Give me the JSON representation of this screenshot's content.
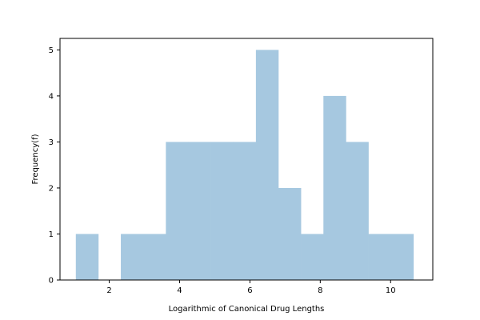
{
  "chart_data": {
    "type": "bar",
    "title": "",
    "xlabel": "Logarithmic of Canonical Drug Lengths",
    "ylabel": "Frequency(f)",
    "xlim": [
      0.6,
      11.2
    ],
    "ylim": [
      0,
      5.25
    ],
    "x_ticks": [
      2,
      4,
      6,
      8,
      10
    ],
    "y_ticks": [
      0,
      1,
      2,
      3,
      4,
      5
    ],
    "bar_color": "#a6c8e0",
    "grid": false,
    "legend": "none",
    "bin_edges": [
      1.05,
      1.69,
      2.33,
      2.97,
      3.61,
      4.25,
      4.89,
      5.53,
      6.17,
      6.81,
      7.45,
      8.09,
      8.73,
      9.37,
      10.01,
      10.65
    ],
    "values": [
      1,
      0,
      1,
      1,
      3,
      3,
      3,
      3,
      5,
      2,
      1,
      4,
      3,
      1,
      1
    ]
  }
}
